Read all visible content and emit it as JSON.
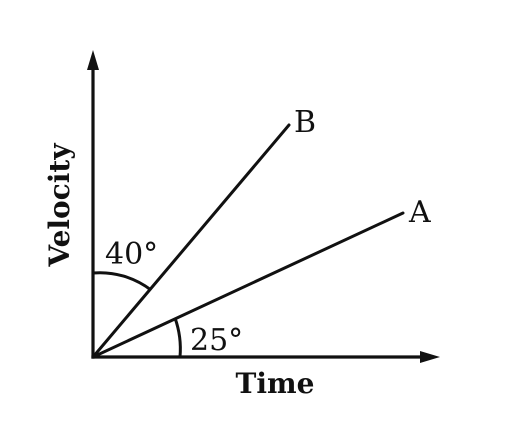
{
  "diagram": {
    "x_axis_label": "Time",
    "y_axis_label": "Velocity",
    "line_a_label": "A",
    "line_b_label": "B",
    "angle_b_label": "40°",
    "angle_a_label": "25°",
    "angle_b_degrees_from_vertical": 40,
    "angle_a_degrees_from_horizontal": 25
  }
}
